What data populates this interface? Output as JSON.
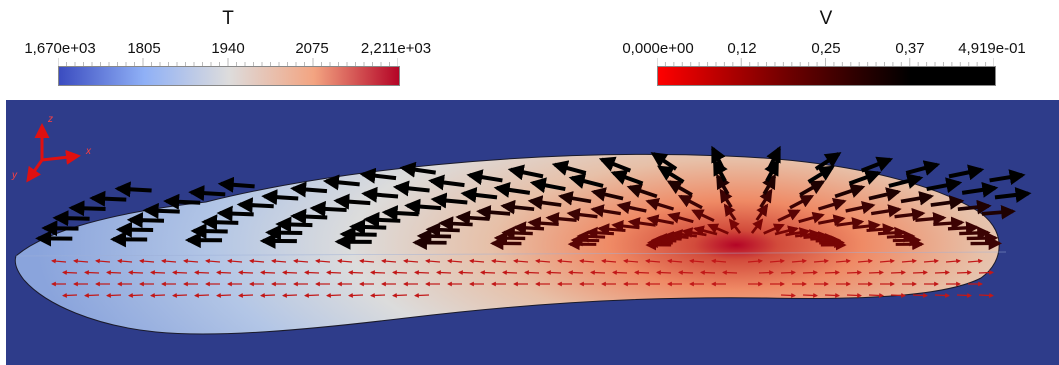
{
  "legend_T": {
    "title": "T",
    "labels": [
      "1,670e+03",
      "1805",
      "1940",
      "2075",
      "2,211e+03"
    ]
  },
  "legend_V": {
    "title": "V",
    "labels": [
      "0,000e+00",
      "0,12",
      "0,25",
      "0,37",
      "4,919e-01"
    ]
  },
  "axes": {
    "z": "z",
    "x": "x",
    "y": "y"
  },
  "colors": {
    "background": "#2e3c8a",
    "axis_triad": "#e01010",
    "cold": "#3b4cc0",
    "neutral": "#dddcdc",
    "hot": "#b40426"
  }
}
